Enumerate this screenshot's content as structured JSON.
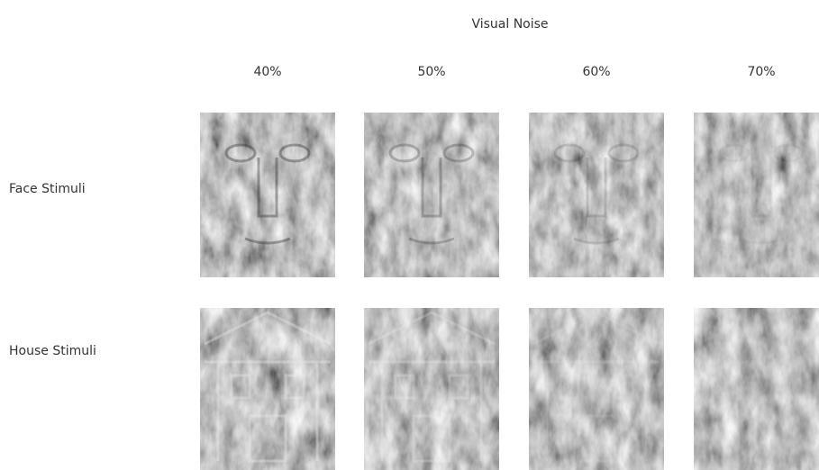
{
  "header": {
    "title": "Visual Noise"
  },
  "columns": [
    "40%",
    "50%",
    "60%",
    "70%"
  ],
  "rows": [
    "Face Stimuli",
    "House Stimuli"
  ]
}
